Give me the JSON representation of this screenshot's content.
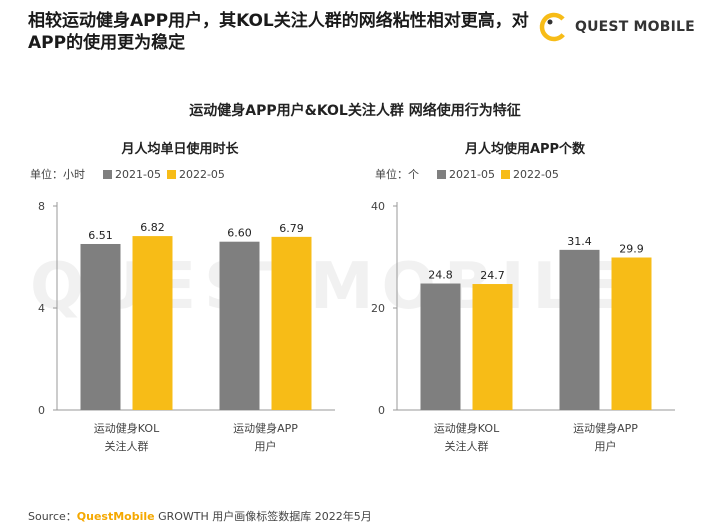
{
  "headline": "相较运动健身APP用户，其KOL关注人群的网络粘性相对更高，对APP的使用更为稳定",
  "logo": {
    "text": "QUEST MOBILE"
  },
  "watermark": "QUESTMOBILE",
  "main_title": "运动健身APP用户&KOL关注人群 网络使用行为特征",
  "colors": {
    "series_2021": "#7f7f7f",
    "series_2022": "#f7bc17"
  },
  "charts": [
    {
      "title": "月人均单日使用时长",
      "unit": "单位：小时",
      "legend": [
        "2021-05",
        "2022-05"
      ]
    },
    {
      "title": "月人均使用APP个数",
      "unit": "单位：个",
      "legend": [
        "2021-05",
        "2022-05"
      ]
    }
  ],
  "chart_data": [
    {
      "type": "bar",
      "title": "月人均单日使用时长",
      "categories": [
        [
          "运动健身KOL",
          "关注人群"
        ],
        [
          "运动健身APP",
          "用户"
        ]
      ],
      "series": [
        {
          "name": "2021-05",
          "values": [
            6.51,
            6.6
          ],
          "labels": [
            "6.51",
            "6.60"
          ]
        },
        {
          "name": "2022-05",
          "values": [
            6.82,
            6.79
          ],
          "labels": [
            "6.82",
            "6.79"
          ]
        }
      ],
      "ylim": [
        0,
        8
      ],
      "yticks": [
        0,
        4,
        8
      ]
    },
    {
      "type": "bar",
      "title": "月人均使用APP个数",
      "categories": [
        [
          "运动健身KOL",
          "关注人群"
        ],
        [
          "运动健身APP",
          "用户"
        ]
      ],
      "series": [
        {
          "name": "2021-05",
          "values": [
            24.8,
            31.4
          ],
          "labels": [
            "24.8",
            "31.4"
          ]
        },
        {
          "name": "2022-05",
          "values": [
            24.7,
            29.9
          ],
          "labels": [
            "24.7",
            "29.9"
          ]
        }
      ],
      "ylim": [
        0,
        40
      ],
      "yticks": [
        0,
        20,
        40
      ]
    }
  ],
  "source": {
    "prefix": "Source：",
    "brand": "QuestMobile",
    "rest": " GROWTH 用户画像标签数据库 2022年5月"
  }
}
